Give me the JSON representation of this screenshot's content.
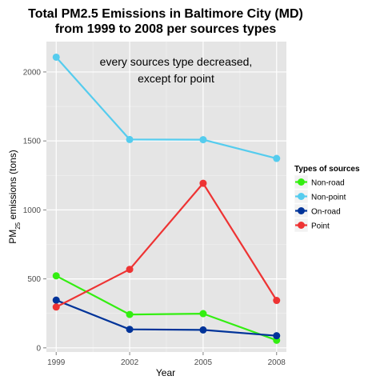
{
  "chart_data": {
    "type": "line",
    "title_line1": "Total PM2.5 Emissions in Baltimore City (MD)",
    "title_line2": "from 1999 to 2008 per sources types",
    "xlabel": "Year",
    "ylabel_prefix": "PM",
    "ylabel_sub": "25",
    "ylabel_suffix": " emissions (tons)",
    "x": [
      1999,
      2002,
      2005,
      2008
    ],
    "x_tick_labels": [
      "1999",
      "2002",
      "2005",
      "2008"
    ],
    "xlim": [
      1998.6,
      2008.4
    ],
    "ylim": [
      -30,
      2220
    ],
    "y_ticks": [
      0,
      500,
      1000,
      1500,
      2000
    ],
    "y_tick_labels": [
      "0",
      "500",
      "1000",
      "1500",
      "2000"
    ],
    "grid": true,
    "legend_position": "right",
    "legend_title": "Types of sources",
    "annotation_line1": "every sources type decreased,",
    "annotation_line2": "except for point",
    "series": [
      {
        "name": "Non-road",
        "color": "#33ee11",
        "values": [
          522,
          242,
          248,
          55
        ]
      },
      {
        "name": "Non-point",
        "color": "#55ccee",
        "values": [
          2107,
          1510,
          1509,
          1373
        ]
      },
      {
        "name": "On-road",
        "color": "#003399",
        "values": [
          346,
          134,
          130,
          88
        ]
      },
      {
        "name": "Point",
        "color": "#ee3333",
        "values": [
          296,
          569,
          1193,
          344
        ]
      }
    ]
  }
}
